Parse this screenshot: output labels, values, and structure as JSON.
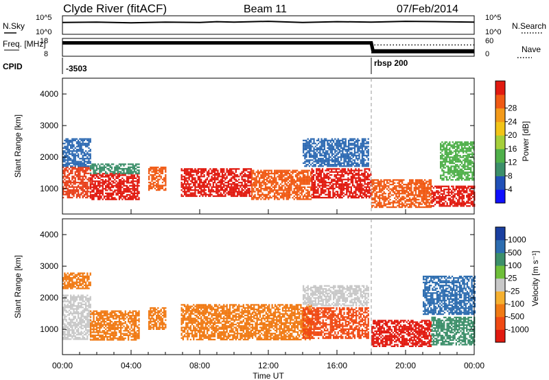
{
  "header": {
    "title": "Clyde River (fitACF)",
    "beam": "Beam 11",
    "date": "07/Feb/2014"
  },
  "chart_data": [
    {
      "type": "line",
      "panel": "noise",
      "ylabel_left": "N.Sky",
      "ylabel_right": "N.Search",
      "left_ticks": [
        "10^5",
        "10^0"
      ],
      "right_ticks": [
        "10^5",
        "10^0"
      ],
      "series": [
        {
          "name": "N.Sky",
          "style": "solid",
          "x": [
            0,
            2,
            4,
            6,
            8,
            9,
            10,
            12,
            14,
            16,
            18,
            20,
            22,
            24
          ],
          "y": [
            3.2,
            3.3,
            3.1,
            3.3,
            3.2,
            3.4,
            3.3,
            3.5,
            3.2,
            3.4,
            3.3,
            3.5,
            3.4,
            3.3
          ]
        }
      ]
    },
    {
      "type": "line",
      "panel": "frequency",
      "ylabel_left": "Freq. [MHz]",
      "ylabel_right": "Nave",
      "left_ticks": [
        "18",
        "8"
      ],
      "right_ticks": [
        "60",
        "0"
      ],
      "series": [
        {
          "name": "Freq.",
          "style": "solid",
          "x": [
            0,
            18,
            18.1,
            24
          ],
          "y": [
            15.5,
            15.5,
            11,
            11
          ]
        },
        {
          "name": "Nave",
          "style": "dotted",
          "x": [
            18,
            24
          ],
          "y": [
            38,
            38
          ]
        }
      ]
    },
    {
      "type": "table",
      "panel": "cpid",
      "label": "CPID",
      "segments": [
        {
          "start_hour": 0,
          "text": "-3503"
        },
        {
          "start_hour": 18,
          "text": "rbsp 200"
        }
      ]
    },
    {
      "type": "heatmap",
      "panel": "power",
      "ylabel": "Slant Range [km]",
      "yticks": [
        1000,
        2000,
        3000,
        4000
      ],
      "ylim": [
        200,
        4500
      ],
      "xlim": [
        0,
        24
      ],
      "colorbar": {
        "label": "Power [dB]",
        "ticks": [
          "4",
          "8",
          "12",
          "16",
          "20",
          "24",
          "28"
        ],
        "colors": [
          "#1010ff",
          "#2050b8",
          "#3c8f6a",
          "#4fb04a",
          "#a6cf3a",
          "#f2c418",
          "#f39a1a",
          "#f05a14",
          "#e11a10"
        ]
      },
      "bands": [
        {
          "x0": 0.0,
          "x1": 1.6,
          "y0": 700,
          "y1": 1700,
          "color": "#e8401a"
        },
        {
          "x0": 0.0,
          "x1": 1.6,
          "y0": 1700,
          "y1": 2600,
          "color": "#2f6bb3"
        },
        {
          "x0": 1.6,
          "x1": 4.5,
          "y0": 650,
          "y1": 1500,
          "color": "#e11a10"
        },
        {
          "x0": 1.6,
          "x1": 4.5,
          "y0": 1500,
          "y1": 1800,
          "color": "#3c8f6a"
        },
        {
          "x0": 5.0,
          "x1": 6.0,
          "y0": 950,
          "y1": 1700,
          "color": "#f05a14"
        },
        {
          "x0": 6.9,
          "x1": 11.0,
          "y0": 750,
          "y1": 1650,
          "color": "#e11a10"
        },
        {
          "x0": 11.0,
          "x1": 14.5,
          "y0": 650,
          "y1": 1600,
          "color": "#f05a14"
        },
        {
          "x0": 14.5,
          "x1": 18.0,
          "y0": 700,
          "y1": 1650,
          "color": "#e11a10"
        },
        {
          "x0": 14.0,
          "x1": 17.8,
          "y0": 1700,
          "y1": 2600,
          "color": "#2f6bb3"
        },
        {
          "x0": 18.0,
          "x1": 21.5,
          "y0": 400,
          "y1": 1300,
          "color": "#f05a14"
        },
        {
          "x0": 21.5,
          "x1": 24.0,
          "y0": 450,
          "y1": 1100,
          "color": "#e11a10"
        },
        {
          "x0": 22.0,
          "x1": 24.0,
          "y0": 1300,
          "y1": 2500,
          "color": "#4fb04a"
        }
      ]
    },
    {
      "type": "heatmap",
      "panel": "velocity",
      "ylabel": "Slant Range [km]",
      "yticks": [
        1000,
        2000,
        3000,
        4000
      ],
      "ylim": [
        200,
        4500
      ],
      "xlim": [
        0,
        24
      ],
      "xticks": [
        "00:00",
        "04:00",
        "08:00",
        "12:00",
        "16:00",
        "20:00",
        "00:00"
      ],
      "xlabel": "Time UT",
      "colorbar": {
        "label": "Velocity [m s⁻¹]",
        "ticks": [
          "1000",
          "500",
          "100",
          "25",
          "-25",
          "-100",
          "-500",
          "-1000"
        ],
        "colors": [
          "#1a3fa0",
          "#2d6db0",
          "#3c8f6a",
          "#6fbf3a",
          "#c8c8c8",
          "#f5b030",
          "#f07a14",
          "#f04a14",
          "#e11a10"
        ]
      },
      "bands": [
        {
          "x0": 0.0,
          "x1": 1.6,
          "y0": 700,
          "y1": 2100,
          "color": "#c8c8c8"
        },
        {
          "x0": 0.0,
          "x1": 1.6,
          "y0": 2300,
          "y1": 2800,
          "color": "#f07a14"
        },
        {
          "x0": 1.6,
          "x1": 4.5,
          "y0": 650,
          "y1": 1600,
          "color": "#f07a14"
        },
        {
          "x0": 5.0,
          "x1": 6.0,
          "y0": 1000,
          "y1": 1700,
          "color": "#f07a14"
        },
        {
          "x0": 6.9,
          "x1": 14.5,
          "y0": 700,
          "y1": 1800,
          "color": "#f07a14"
        },
        {
          "x0": 14.0,
          "x1": 17.8,
          "y0": 700,
          "y1": 1700,
          "color": "#f04a14"
        },
        {
          "x0": 14.0,
          "x1": 17.8,
          "y0": 1750,
          "y1": 2400,
          "color": "#c8c8c8"
        },
        {
          "x0": 18.0,
          "x1": 21.5,
          "y0": 450,
          "y1": 1300,
          "color": "#e11a10"
        },
        {
          "x0": 21.5,
          "x1": 24.0,
          "y0": 500,
          "y1": 1400,
          "color": "#3c8f6a"
        },
        {
          "x0": 21.0,
          "x1": 24.0,
          "y0": 1500,
          "y1": 2700,
          "color": "#2d6db0"
        }
      ]
    }
  ]
}
